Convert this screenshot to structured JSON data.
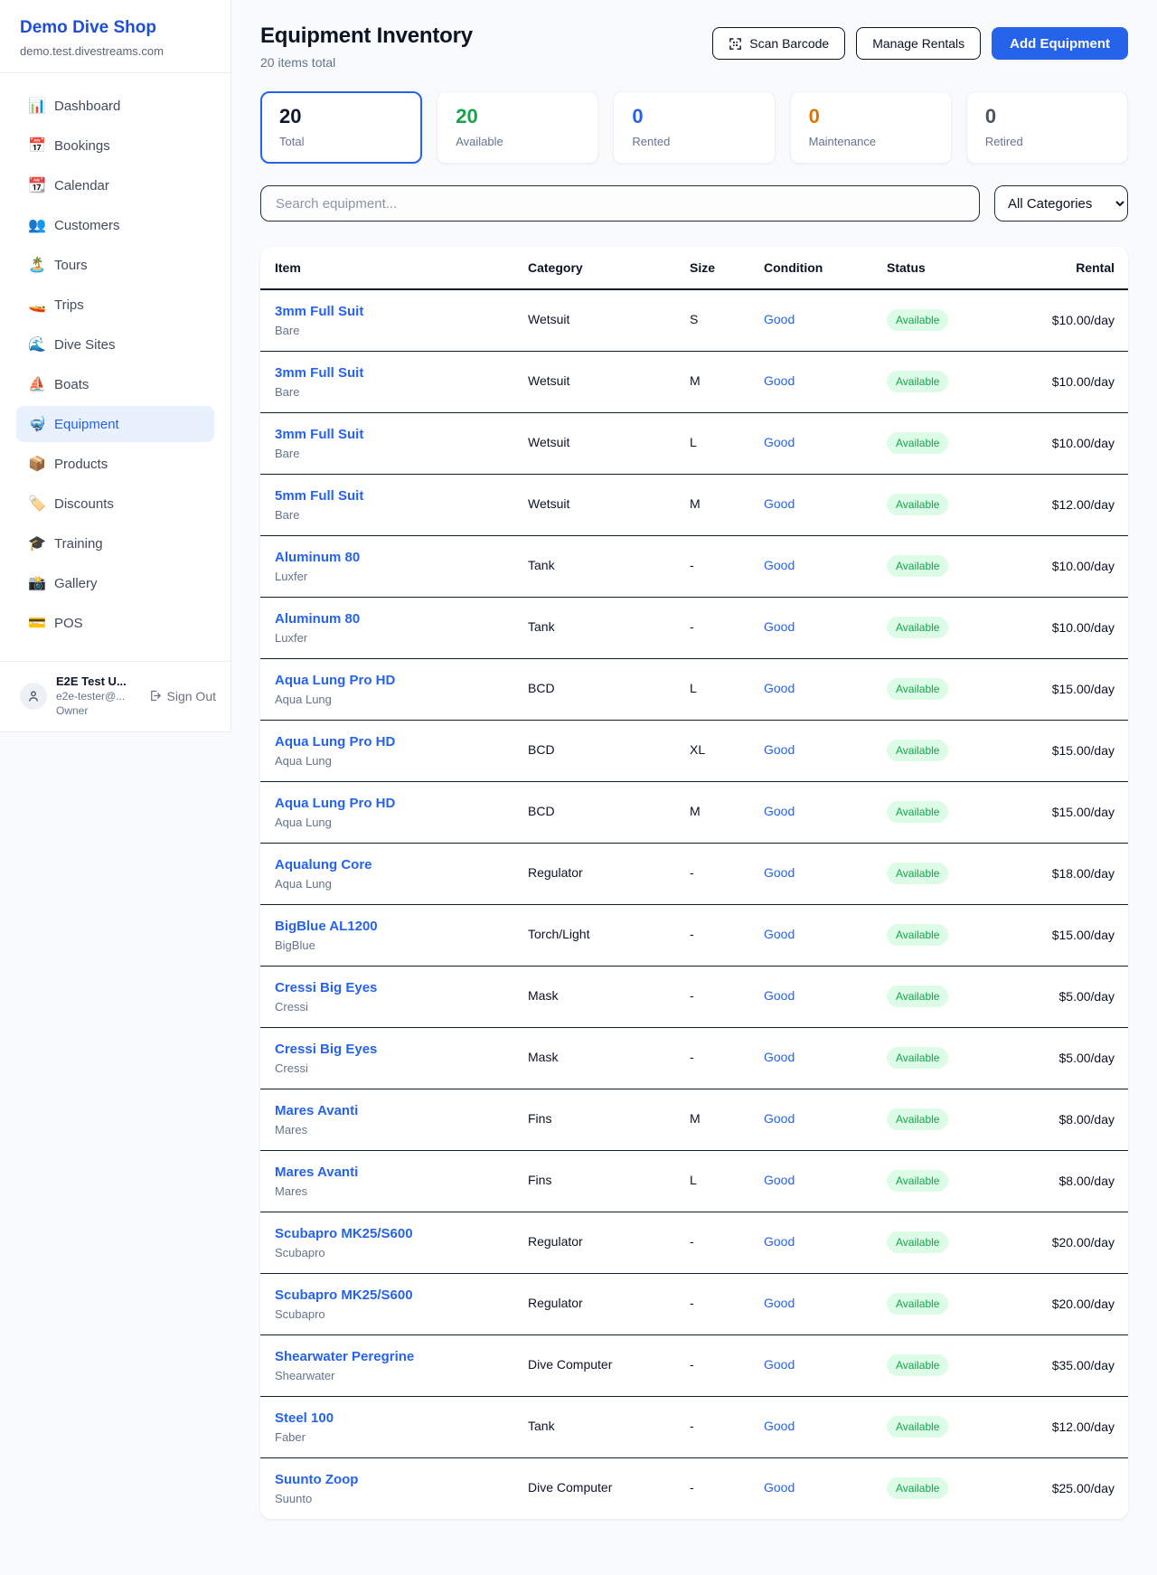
{
  "sidebar": {
    "brand": {
      "name": "Demo Dive Shop",
      "domain": "demo.test.divestreams.com"
    },
    "items": [
      {
        "label": "Dashboard",
        "icon": "📊",
        "icon_name": "bar-chart-icon",
        "active": false
      },
      {
        "label": "Bookings",
        "icon": "📅",
        "icon_name": "calendar-icon",
        "active": false
      },
      {
        "label": "Calendar",
        "icon": "📆",
        "icon_name": "tear-off-calendar-icon",
        "active": false
      },
      {
        "label": "Customers",
        "icon": "👥",
        "icon_name": "people-icon",
        "active": false
      },
      {
        "label": "Tours",
        "icon": "🏝️",
        "icon_name": "island-icon",
        "active": false
      },
      {
        "label": "Trips",
        "icon": "🚤",
        "icon_name": "speedboat-icon",
        "active": false
      },
      {
        "label": "Dive Sites",
        "icon": "🌊",
        "icon_name": "wave-icon",
        "active": false
      },
      {
        "label": "Boats",
        "icon": "⛵",
        "icon_name": "sailboat-icon",
        "active": false
      },
      {
        "label": "Equipment",
        "icon": "🤿",
        "icon_name": "diving-mask-icon",
        "active": true
      },
      {
        "label": "Products",
        "icon": "📦",
        "icon_name": "package-icon",
        "active": false
      },
      {
        "label": "Discounts",
        "icon": "🏷️",
        "icon_name": "tag-icon",
        "active": false
      },
      {
        "label": "Training",
        "icon": "🎓",
        "icon_name": "graduation-cap-icon",
        "active": false
      },
      {
        "label": "Gallery",
        "icon": "📸",
        "icon_name": "camera-icon",
        "active": false
      },
      {
        "label": "POS",
        "icon": "💳",
        "icon_name": "credit-card-icon",
        "active": false
      }
    ],
    "user": {
      "name": "E2E Test U...",
      "email": "e2e-tester@...",
      "role": "Owner",
      "sign_out_label": "Sign Out"
    }
  },
  "header": {
    "title": "Equipment Inventory",
    "subtitle": "20 items total",
    "scan_barcode_label": "Scan Barcode",
    "manage_rentals_label": "Manage Rentals",
    "add_equipment_label": "Add Equipment"
  },
  "stats": [
    {
      "value": "20",
      "label": "Total",
      "color": "#0f172a",
      "selected": true
    },
    {
      "value": "20",
      "label": "Available",
      "color": "#16a34a",
      "selected": false
    },
    {
      "value": "0",
      "label": "Rented",
      "color": "#2563eb",
      "selected": false
    },
    {
      "value": "0",
      "label": "Maintenance",
      "color": "#d97706",
      "selected": false
    },
    {
      "value": "0",
      "label": "Retired",
      "color": "#4b5563",
      "selected": false
    }
  ],
  "filters": {
    "search_placeholder": "Search equipment...",
    "category_selected": "All Categories"
  },
  "table": {
    "columns": [
      "Item",
      "Category",
      "Size",
      "Condition",
      "Status",
      "Rental"
    ],
    "rows": [
      {
        "name": "3mm Full Suit",
        "brand": "Bare",
        "category": "Wetsuit",
        "size": "S",
        "condition": "Good",
        "status": "Available",
        "rental": "$10.00/day"
      },
      {
        "name": "3mm Full Suit",
        "brand": "Bare",
        "category": "Wetsuit",
        "size": "M",
        "condition": "Good",
        "status": "Available",
        "rental": "$10.00/day"
      },
      {
        "name": "3mm Full Suit",
        "brand": "Bare",
        "category": "Wetsuit",
        "size": "L",
        "condition": "Good",
        "status": "Available",
        "rental": "$10.00/day"
      },
      {
        "name": "5mm Full Suit",
        "brand": "Bare",
        "category": "Wetsuit",
        "size": "M",
        "condition": "Good",
        "status": "Available",
        "rental": "$12.00/day"
      },
      {
        "name": "Aluminum 80",
        "brand": "Luxfer",
        "category": "Tank",
        "size": "-",
        "condition": "Good",
        "status": "Available",
        "rental": "$10.00/day"
      },
      {
        "name": "Aluminum 80",
        "brand": "Luxfer",
        "category": "Tank",
        "size": "-",
        "condition": "Good",
        "status": "Available",
        "rental": "$10.00/day"
      },
      {
        "name": "Aqua Lung Pro HD",
        "brand": "Aqua Lung",
        "category": "BCD",
        "size": "L",
        "condition": "Good",
        "status": "Available",
        "rental": "$15.00/day"
      },
      {
        "name": "Aqua Lung Pro HD",
        "brand": "Aqua Lung",
        "category": "BCD",
        "size": "XL",
        "condition": "Good",
        "status": "Available",
        "rental": "$15.00/day"
      },
      {
        "name": "Aqua Lung Pro HD",
        "brand": "Aqua Lung",
        "category": "BCD",
        "size": "M",
        "condition": "Good",
        "status": "Available",
        "rental": "$15.00/day"
      },
      {
        "name": "Aqualung Core",
        "brand": "Aqua Lung",
        "category": "Regulator",
        "size": "-",
        "condition": "Good",
        "status": "Available",
        "rental": "$18.00/day"
      },
      {
        "name": "BigBlue AL1200",
        "brand": "BigBlue",
        "category": "Torch/Light",
        "size": "-",
        "condition": "Good",
        "status": "Available",
        "rental": "$15.00/day"
      },
      {
        "name": "Cressi Big Eyes",
        "brand": "Cressi",
        "category": "Mask",
        "size": "-",
        "condition": "Good",
        "status": "Available",
        "rental": "$5.00/day"
      },
      {
        "name": "Cressi Big Eyes",
        "brand": "Cressi",
        "category": "Mask",
        "size": "-",
        "condition": "Good",
        "status": "Available",
        "rental": "$5.00/day"
      },
      {
        "name": "Mares Avanti",
        "brand": "Mares",
        "category": "Fins",
        "size": "M",
        "condition": "Good",
        "status": "Available",
        "rental": "$8.00/day"
      },
      {
        "name": "Mares Avanti",
        "brand": "Mares",
        "category": "Fins",
        "size": "L",
        "condition": "Good",
        "status": "Available",
        "rental": "$8.00/day"
      },
      {
        "name": "Scubapro MK25/S600",
        "brand": "Scubapro",
        "category": "Regulator",
        "size": "-",
        "condition": "Good",
        "status": "Available",
        "rental": "$20.00/day"
      },
      {
        "name": "Scubapro MK25/S600",
        "brand": "Scubapro",
        "category": "Regulator",
        "size": "-",
        "condition": "Good",
        "status": "Available",
        "rental": "$20.00/day"
      },
      {
        "name": "Shearwater Peregrine",
        "brand": "Shearwater",
        "category": "Dive Computer",
        "size": "-",
        "condition": "Good",
        "status": "Available",
        "rental": "$35.00/day"
      },
      {
        "name": "Steel 100",
        "brand": "Faber",
        "category": "Tank",
        "size": "-",
        "condition": "Good",
        "status": "Available",
        "rental": "$12.00/day"
      },
      {
        "name": "Suunto Zoop",
        "brand": "Suunto",
        "category": "Dive Computer",
        "size": "-",
        "condition": "Good",
        "status": "Available",
        "rental": "$25.00/day"
      }
    ]
  },
  "colors": {
    "accent_blue": "#2563eb",
    "brand_blue": "#1d4ed8",
    "badge_green_bg": "#dcfce7",
    "badge_green_text": "#16a34a",
    "page_bg": "#f8fafc"
  }
}
